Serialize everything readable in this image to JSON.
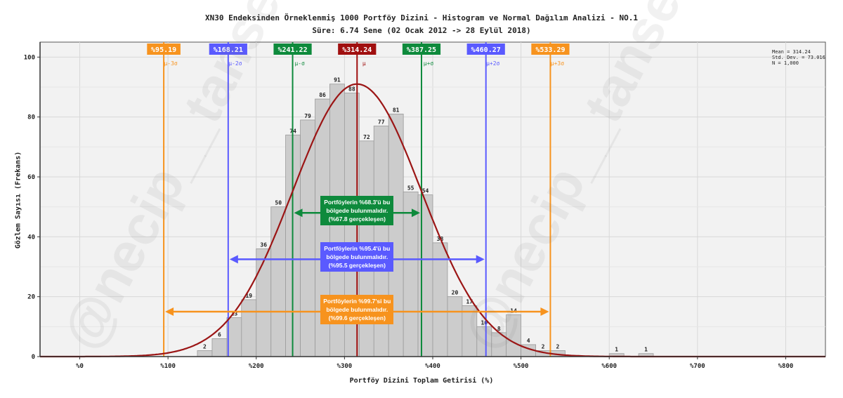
{
  "chart_data": {
    "type": "bar",
    "title": "XN30 Endeksinden Örneklenmiş 1000 Portföy Dizini - Histogram ve Normal Dağılım Analizi - NO.1",
    "subtitle": "Süre: 6.74 Sene (02 Ocak 2012 -> 28 Eylül 2018)",
    "xlabel": "Portföy Dizini Toplam Getirisi (%)",
    "ylabel": "Gözlem Sayısı (Frekans)",
    "xlim": [
      -45,
      845
    ],
    "ylim": [
      0,
      105
    ],
    "grid": true,
    "x_ticks": [
      0,
      100,
      200,
      300,
      400,
      500,
      600,
      700,
      800
    ],
    "x_tick_labels": [
      "%0",
      "%100",
      "%200",
      "%300",
      "%400",
      "%500",
      "%600",
      "%700",
      "%800"
    ],
    "y_ticks": [
      0,
      20,
      40,
      60,
      80,
      100
    ],
    "bin_width": 16.7,
    "bins": [
      {
        "start": 133.3,
        "count": 2
      },
      {
        "start": 150.0,
        "count": 6
      },
      {
        "start": 166.7,
        "count": 13
      },
      {
        "start": 183.3,
        "count": 19
      },
      {
        "start": 200.0,
        "count": 36
      },
      {
        "start": 216.7,
        "count": 50
      },
      {
        "start": 233.3,
        "count": 74
      },
      {
        "start": 250.0,
        "count": 79
      },
      {
        "start": 266.7,
        "count": 86
      },
      {
        "start": 283.3,
        "count": 91
      },
      {
        "start": 300.0,
        "count": 88
      },
      {
        "start": 316.7,
        "count": 72
      },
      {
        "start": 333.3,
        "count": 77
      },
      {
        "start": 350.0,
        "count": 81
      },
      {
        "start": 366.7,
        "count": 55
      },
      {
        "start": 383.3,
        "count": 54
      },
      {
        "start": 400.0,
        "count": 38
      },
      {
        "start": 416.7,
        "count": 20
      },
      {
        "start": 433.3,
        "count": 17
      },
      {
        "start": 450.0,
        "count": 10
      },
      {
        "start": 466.7,
        "count": 8
      },
      {
        "start": 483.3,
        "count": 14
      },
      {
        "start": 500.0,
        "count": 4
      },
      {
        "start": 516.7,
        "count": 2
      },
      {
        "start": 533.3,
        "count": 2
      },
      {
        "start": 600.0,
        "count": 1
      },
      {
        "start": 633.3,
        "count": 1
      }
    ],
    "normal_curve": {
      "mean": 314.24,
      "std": 73.016,
      "peak": 91
    },
    "sigma_lines": [
      {
        "value": 95.19,
        "label": "%95.19",
        "sym": "μ-3σ",
        "color": "#f7931e"
      },
      {
        "value": 168.21,
        "label": "%168.21",
        "sym": "μ-2σ",
        "color": "#5a5aff"
      },
      {
        "value": 241.22,
        "label": "%241.22",
        "sym": "μ-σ",
        "color": "#0e8a3c"
      },
      {
        "value": 314.24,
        "label": "%314.24",
        "sym": "μ",
        "color": "#a00f0f"
      },
      {
        "value": 387.25,
        "label": "%387.25",
        "sym": "μ+σ",
        "color": "#0e8a3c"
      },
      {
        "value": 460.27,
        "label": "%460.27",
        "sym": "μ+2σ",
        "color": "#5a5aff"
      },
      {
        "value": 533.29,
        "label": "%533.29",
        "sym": "μ+3σ",
        "color": "#f7931e"
      }
    ],
    "ranges": [
      {
        "from": 241.22,
        "to": 387.25,
        "y": 48,
        "color": "#0e8a3c",
        "text": "Portföylerin %68.3'ü bu bölgede bulunmalıdır. (%67.8 gerçekleşen)"
      },
      {
        "from": 168.21,
        "to": 460.27,
        "y": 32.5,
        "color": "#5a5aff",
        "text": "Portföylerin %95.4'ü bu bölgede bulunmalıdır. (%95.5 gerçekleşen)"
      },
      {
        "from": 95.19,
        "to": 533.29,
        "y": 15,
        "color": "#f7931e",
        "text": "Portföylerin %99.7'si bu bölgede bulunmalıdır. (%99.6 gerçekleşen)"
      }
    ],
    "stats": {
      "mean": "Mean = 314.24",
      "std": "Std. Dev. = 73.016",
      "n": "N = 1,000"
    }
  },
  "watermark": "@necip__tansel"
}
